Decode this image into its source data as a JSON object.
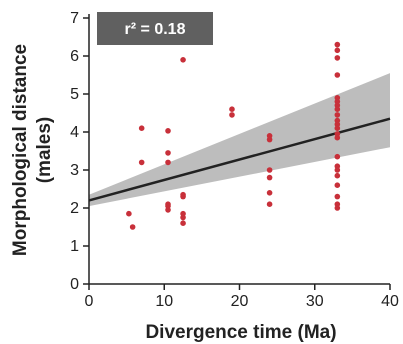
{
  "chart_data": {
    "type": "scatter",
    "title": "",
    "xlabel": "Divergence time (Ma)",
    "ylabel_line1": "Morphological distance",
    "ylabel_line2": "(males)",
    "xlim": [
      0,
      40
    ],
    "ylim": [
      0,
      7
    ],
    "xticks": [
      0,
      10,
      20,
      30,
      40
    ],
    "yticks": [
      0,
      1,
      2,
      3,
      4,
      5,
      6,
      7
    ],
    "grid": false,
    "annotation": {
      "label": "r² = 0.18",
      "box_color": "#606060",
      "text_color": "#ffffff",
      "placement": "top-left"
    },
    "points_color": "#c8303a",
    "series": [
      {
        "points": [
          [
            5.3,
            1.85
          ],
          [
            5.8,
            1.5
          ],
          [
            7.0,
            4.1
          ],
          [
            7.0,
            3.2
          ],
          [
            10.5,
            4.03
          ],
          [
            10.5,
            3.45
          ],
          [
            10.5,
            3.2
          ],
          [
            10.5,
            2.1
          ],
          [
            10.5,
            2.05
          ],
          [
            10.5,
            1.95
          ],
          [
            12.5,
            5.9
          ],
          [
            12.5,
            2.35
          ],
          [
            12.5,
            2.3
          ],
          [
            12.5,
            1.85
          ],
          [
            12.5,
            1.75
          ],
          [
            12.5,
            1.6
          ],
          [
            19.0,
            4.6
          ],
          [
            19.0,
            4.45
          ],
          [
            24.0,
            3.9
          ],
          [
            24.0,
            3.8
          ],
          [
            24.0,
            3.0
          ],
          [
            24.0,
            2.8
          ],
          [
            24.0,
            2.4
          ],
          [
            24.0,
            2.1
          ],
          [
            33.0,
            6.3
          ],
          [
            33.0,
            6.15
          ],
          [
            33.0,
            5.95
          ],
          [
            33.0,
            5.5
          ],
          [
            33.0,
            4.9
          ],
          [
            33.0,
            4.8
          ],
          [
            33.0,
            4.7
          ],
          [
            33.0,
            4.6
          ],
          [
            33.0,
            4.45
          ],
          [
            33.0,
            4.3
          ],
          [
            33.0,
            4.2
          ],
          [
            33.0,
            4.1
          ],
          [
            33.0,
            3.95
          ],
          [
            33.0,
            3.85
          ],
          [
            33.0,
            3.35
          ],
          [
            33.0,
            3.1
          ],
          [
            33.0,
            3.0
          ],
          [
            33.0,
            2.85
          ],
          [
            33.0,
            2.6
          ],
          [
            33.0,
            2.3
          ],
          [
            33.0,
            2.1
          ],
          [
            33.0,
            2.0
          ]
        ]
      }
    ],
    "regression": {
      "x": [
        0,
        40
      ],
      "y": [
        2.2,
        4.35
      ],
      "color": "#222222"
    },
    "confidence_band": {
      "x": [
        0,
        40
      ],
      "upper": [
        2.35,
        5.55
      ],
      "lower": [
        2.05,
        3.6
      ],
      "color": "#bdbdbd"
    }
  }
}
